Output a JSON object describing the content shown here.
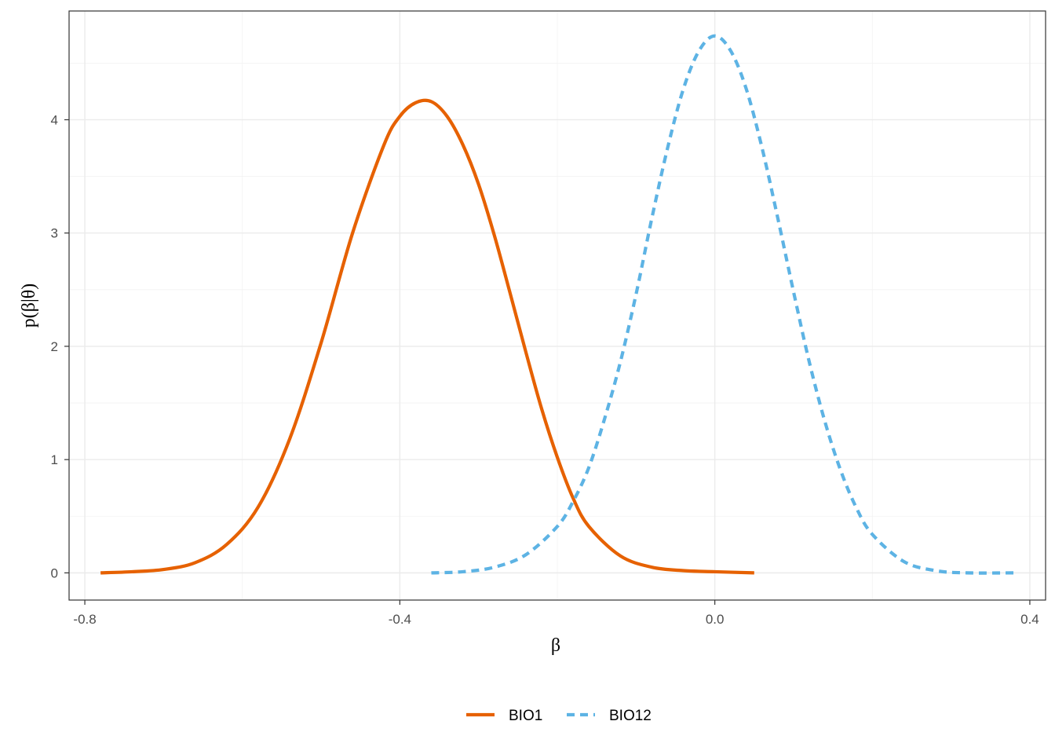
{
  "chart_data": {
    "type": "line",
    "xlabel": "β",
    "ylabel": "p(β|θ)",
    "xlim": [
      -0.82,
      0.42
    ],
    "ylim": [
      -0.24,
      4.96
    ],
    "x_ticks": [
      -0.8,
      -0.4,
      0.0,
      0.4
    ],
    "x_tick_labels": [
      "-0.8",
      "-0.4",
      "0.0",
      "0.4"
    ],
    "y_ticks": [
      0,
      1,
      2,
      3,
      4
    ],
    "y_tick_labels": [
      "0",
      "1",
      "2",
      "3",
      "4"
    ],
    "grid": true,
    "legend_position": "bottom",
    "series": [
      {
        "name": "BIO1",
        "color": "#E66100",
        "linestyle": "solid",
        "x": [
          -0.78,
          -0.74,
          -0.7,
          -0.66,
          -0.62,
          -0.58,
          -0.54,
          -0.5,
          -0.46,
          -0.42,
          -0.4,
          -0.38,
          -0.36,
          -0.34,
          -0.32,
          -0.3,
          -0.28,
          -0.26,
          -0.24,
          -0.22,
          -0.2,
          -0.18,
          -0.16,
          -0.12,
          -0.08,
          -0.04,
          0.0,
          0.05
        ],
        "y": [
          0.0,
          0.01,
          0.03,
          0.09,
          0.25,
          0.58,
          1.18,
          2.03,
          3.0,
          3.78,
          4.03,
          4.15,
          4.16,
          4.03,
          3.78,
          3.43,
          2.98,
          2.47,
          1.95,
          1.45,
          1.02,
          0.66,
          0.41,
          0.15,
          0.05,
          0.02,
          0.01,
          0.0
        ]
      },
      {
        "name": "BIO12",
        "color": "#5DB3E4",
        "linestyle": "dashed",
        "x": [
          -0.36,
          -0.32,
          -0.28,
          -0.24,
          -0.2,
          -0.18,
          -0.16,
          -0.14,
          -0.12,
          -0.1,
          -0.08,
          -0.06,
          -0.04,
          -0.02,
          0.0,
          0.02,
          0.04,
          0.06,
          0.08,
          0.1,
          0.12,
          0.14,
          0.16,
          0.18,
          0.2,
          0.24,
          0.28,
          0.32,
          0.38
        ],
        "y": [
          0.0,
          0.01,
          0.05,
          0.16,
          0.41,
          0.63,
          0.93,
          1.36,
          1.86,
          2.46,
          3.13,
          3.75,
          4.27,
          4.61,
          4.74,
          4.61,
          4.27,
          3.75,
          3.13,
          2.48,
          1.86,
          1.33,
          0.9,
          0.57,
          0.34,
          0.1,
          0.02,
          0.0,
          0.0
        ]
      }
    ]
  }
}
